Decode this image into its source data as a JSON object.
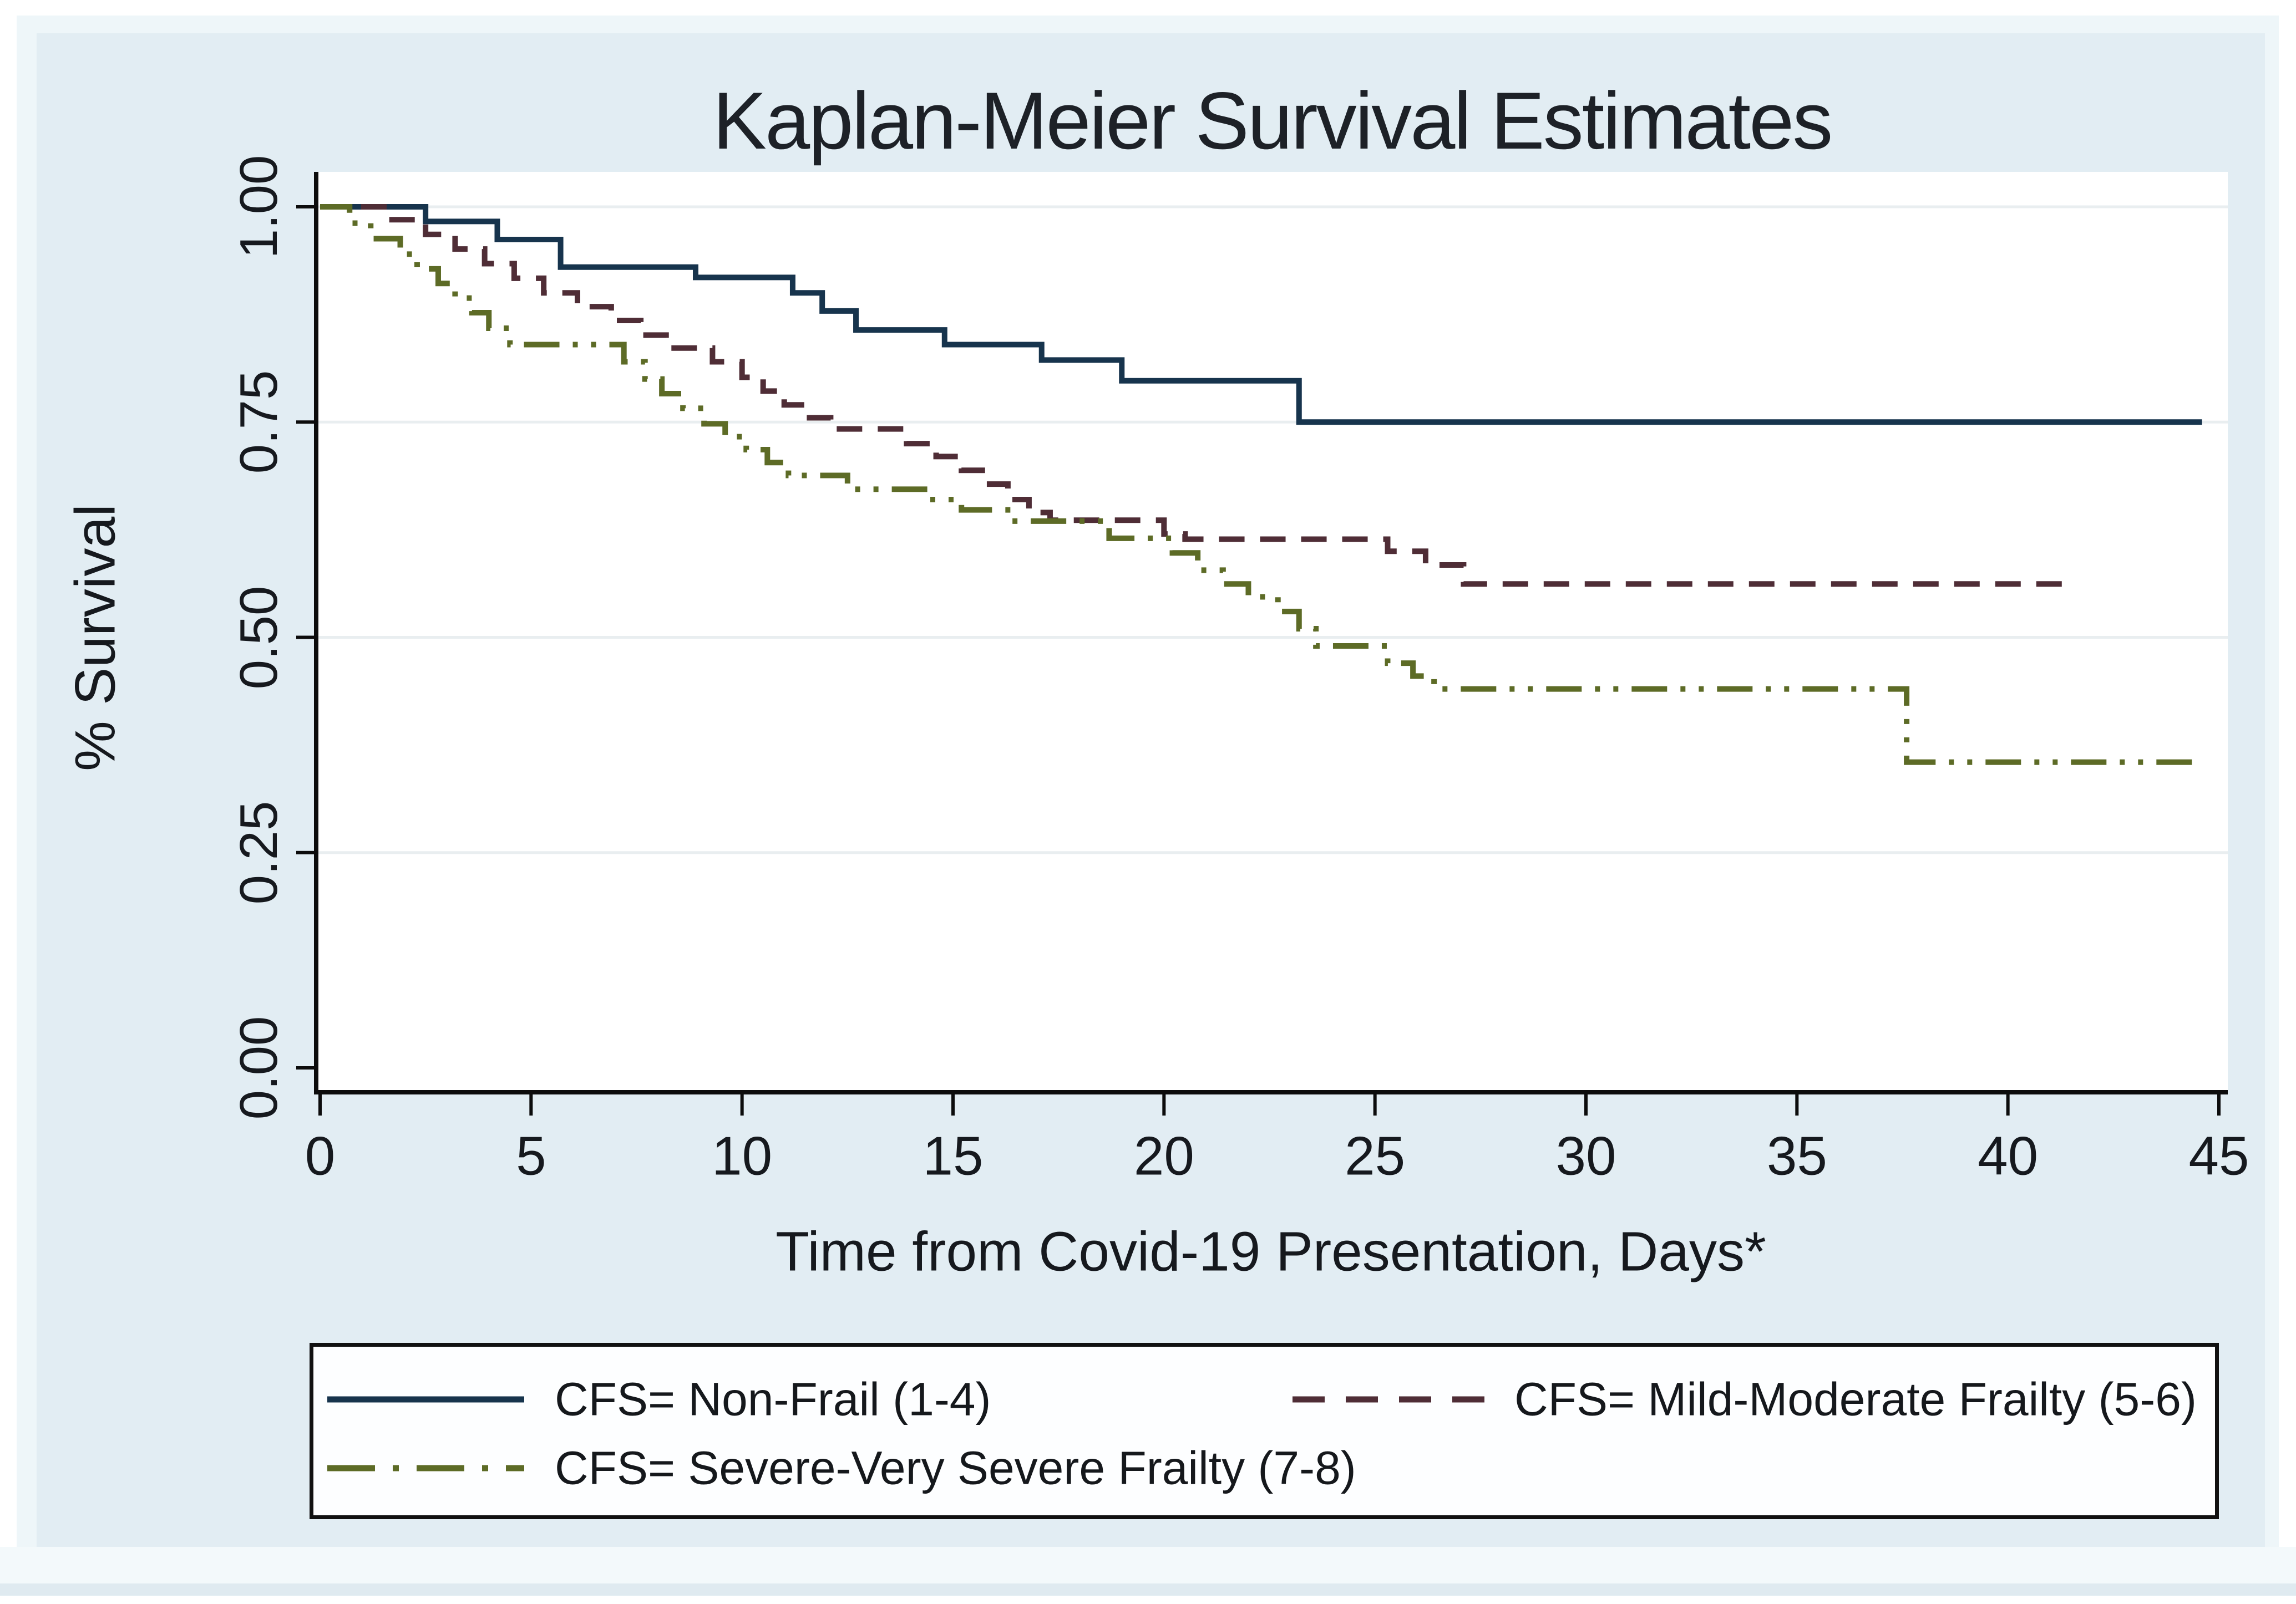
{
  "title": "Kaplan-Meier Survival Estimates",
  "chart_data": {
    "type": "line",
    "subtype": "kaplan-meier-step",
    "title": "Kaplan-Meier Survival Estimates",
    "xlabel": "Time from Covid-19 Presentation, Days*",
    "ylabel": "% Survival",
    "xlim": [
      0,
      45
    ],
    "ylim": [
      0.0,
      1.0
    ],
    "xticks": [
      0,
      5,
      10,
      15,
      20,
      25,
      30,
      35,
      40,
      45
    ],
    "yticks": [
      {
        "value": 0.0,
        "label": "0.00"
      },
      {
        "value": 0.25,
        "label": "0.25"
      },
      {
        "value": 0.5,
        "label": "0.50"
      },
      {
        "value": 0.75,
        "label": "0.75"
      },
      {
        "value": 1.0,
        "label": "1.00"
      }
    ],
    "grid": "horizontal",
    "gridline_values": [
      0.25,
      0.5,
      0.75,
      1.0
    ],
    "legend_position": "bottom-box",
    "series": [
      {
        "name": "CFS= Non-Frail (1-4)",
        "color": "#17344d",
        "style": "solid",
        "steps": [
          [
            0,
            1.0
          ],
          [
            2.5,
            0.983
          ],
          [
            4.2,
            0.962
          ],
          [
            5.7,
            0.93
          ],
          [
            8.9,
            0.918
          ],
          [
            11.2,
            0.9
          ],
          [
            11.9,
            0.879
          ],
          [
            12.7,
            0.857
          ],
          [
            14.8,
            0.84
          ],
          [
            17.1,
            0.822
          ],
          [
            19.0,
            0.798
          ],
          [
            23.2,
            0.75
          ],
          [
            44.6,
            0.75
          ]
        ]
      },
      {
        "name": "CFS= Mild-Moderate Frailty (5-6)",
        "color": "#4f2d36",
        "style": "dashed",
        "steps": [
          [
            0,
            1.0
          ],
          [
            1.6,
            0.985
          ],
          [
            2.5,
            0.968
          ],
          [
            3.2,
            0.951
          ],
          [
            3.9,
            0.934
          ],
          [
            4.6,
            0.917
          ],
          [
            5.3,
            0.9
          ],
          [
            6.1,
            0.884
          ],
          [
            6.9,
            0.868
          ],
          [
            7.6,
            0.851
          ],
          [
            8.2,
            0.836
          ],
          [
            9.3,
            0.82
          ],
          [
            10.0,
            0.802
          ],
          [
            10.5,
            0.786
          ],
          [
            11.0,
            0.77
          ],
          [
            11.6,
            0.755
          ],
          [
            12.1,
            0.742
          ],
          [
            13.9,
            0.725
          ],
          [
            14.6,
            0.71
          ],
          [
            15.2,
            0.694
          ],
          [
            15.8,
            0.678
          ],
          [
            16.3,
            0.66
          ],
          [
            16.8,
            0.645
          ],
          [
            17.3,
            0.636
          ],
          [
            20.0,
            0.62
          ],
          [
            20.5,
            0.614
          ],
          [
            25.3,
            0.6
          ],
          [
            26.2,
            0.584
          ],
          [
            27.1,
            0.562
          ],
          [
            41.6,
            0.562
          ]
        ]
      },
      {
        "name": "CFS= Severe-Very Severe Frailty (7-8)",
        "color": "#5d6b26",
        "style": "dash-dot-dot",
        "steps": [
          [
            0,
            1.0
          ],
          [
            0.7,
            0.981
          ],
          [
            1.2,
            0.963
          ],
          [
            1.9,
            0.945
          ],
          [
            2.3,
            0.928
          ],
          [
            2.8,
            0.911
          ],
          [
            3.2,
            0.894
          ],
          [
            3.6,
            0.877
          ],
          [
            4.0,
            0.859
          ],
          [
            4.5,
            0.84
          ],
          [
            7.2,
            0.82
          ],
          [
            7.7,
            0.8
          ],
          [
            8.1,
            0.783
          ],
          [
            8.6,
            0.766
          ],
          [
            9.1,
            0.748
          ],
          [
            9.6,
            0.733
          ],
          [
            10.1,
            0.718
          ],
          [
            10.6,
            0.703
          ],
          [
            11.1,
            0.688
          ],
          [
            12.5,
            0.672
          ],
          [
            14.4,
            0.66
          ],
          [
            15.2,
            0.648
          ],
          [
            16.4,
            0.635
          ],
          [
            18.7,
            0.615
          ],
          [
            20.2,
            0.598
          ],
          [
            20.8,
            0.578
          ],
          [
            21.4,
            0.562
          ],
          [
            22.0,
            0.547
          ],
          [
            22.7,
            0.53
          ],
          [
            23.2,
            0.51
          ],
          [
            23.6,
            0.49
          ],
          [
            25.3,
            0.47
          ],
          [
            25.9,
            0.455
          ],
          [
            26.4,
            0.44
          ],
          [
            37.6,
            0.355
          ],
          [
            44.6,
            0.355
          ]
        ]
      }
    ]
  },
  "colors": {
    "page_background": "#ffffff",
    "panel_background": "#e2edf3",
    "plot_background": "#ffffff",
    "gridline": "#e9eef0",
    "axis": "#0c0c0c",
    "title_text": "#1d2127",
    "navy_series": "#17344d",
    "maroon_series": "#4f2d36",
    "olive_series": "#5d6b26",
    "legend_border": "#111111"
  }
}
